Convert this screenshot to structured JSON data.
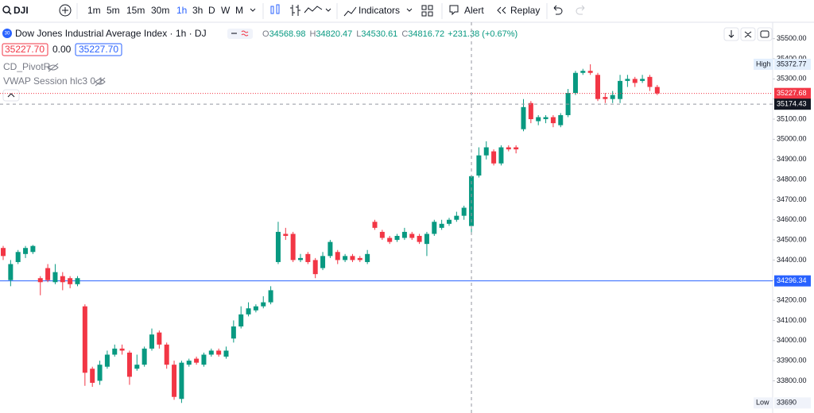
{
  "toolbar": {
    "symbol": "DJI",
    "intervals": [
      "1m",
      "5m",
      "15m",
      "30m",
      "1h",
      "3h",
      "D",
      "W",
      "M"
    ],
    "indicators": "Indicators",
    "alert": "Alert",
    "replay": "Replay"
  },
  "header": {
    "icon_text": "30",
    "title": "Dow Jones Industrial Average Index · 1h · DJ",
    "o_label": "O",
    "h_label": "H",
    "l_label": "L",
    "c_label": "C",
    "change": "+231.38 (+0.67%)",
    "bid": "35227.70",
    "spread": "0.00",
    "ask": "35227.70",
    "indicator_1": "CD_PivotR",
    "indicator_2": "VWAP Session hlc3 0 1",
    "high_label": "High",
    "low_label": "Low"
  },
  "chart_data": {
    "type": "candlestick",
    "hover_index": 63,
    "up_color": "#089981",
    "down_color": "#f23645",
    "open": [
      34460,
      34300,
      34390,
      34430,
      34440,
      34310,
      34360,
      34290,
      34320,
      34310,
      34280,
      34170,
      33860,
      33800,
      33870,
      33930,
      33960,
      33940,
      33860,
      33880,
      33960,
      34040,
      33980,
      33880,
      33710,
      33880,
      33910,
      33880,
      33930,
      33950,
      33920,
      34010,
      34070,
      34130,
      34150,
      34170,
      34190,
      34390,
      34530,
      34530,
      34400,
      34430,
      34400,
      34360,
      34420,
      34440,
      34400,
      34420,
      34410,
      34390,
      34590,
      34540,
      34510,
      34500,
      34510,
      34530,
      34520,
      34480,
      34530,
      34560,
      34580,
      34600,
      34620,
      34568.98,
      34820,
      34920,
      34940,
      34880,
      34960,
      34960,
      35050,
      35180,
      35090,
      35100,
      35110,
      35070,
      35120,
      35230,
      35330,
      35340,
      35320,
      35210,
      35200,
      35200,
      35290,
      35300,
      35290,
      35310,
      35260
    ],
    "high": [
      34470,
      34400,
      34450,
      34470,
      34475,
      34320,
      34380,
      34380,
      34340,
      34320,
      34320,
      34180,
      33870,
      33900,
      33950,
      33980,
      33980,
      33950,
      33930,
      33970,
      34060,
      34050,
      33990,
      33900,
      33900,
      33910,
      33920,
      33940,
      33960,
      33960,
      33970,
      34100,
      34170,
      34190,
      34180,
      34220,
      34270,
      34590,
      34560,
      34540,
      34430,
      34440,
      34410,
      34440,
      34500,
      34450,
      34430,
      34430,
      34420,
      34450,
      34600,
      34550,
      34520,
      34530,
      34560,
      34540,
      34530,
      34540,
      34600,
      34600,
      34610,
      34640,
      34670,
      34820.47,
      34960,
      34990,
      34950,
      34970,
      34970,
      34970,
      35200,
      35190,
      35120,
      35120,
      35120,
      35130,
      35250,
      35340,
      35350,
      35372.77,
      35330,
      35230,
      35240,
      35320,
      35320,
      35310,
      35320,
      35320,
      35270
    ],
    "low": [
      34400,
      34270,
      34380,
      34410,
      34430,
      34225,
      34290,
      34280,
      34250,
      34260,
      34270,
      33775,
      33770,
      33780,
      33860,
      33920,
      33930,
      33780,
      33850,
      33870,
      33950,
      33960,
      33860,
      33705.68,
      33690,
      33870,
      33880,
      33870,
      33920,
      33920,
      33910,
      33990,
      34060,
      34120,
      34140,
      34160,
      34180,
      34380,
      34500,
      34390,
      34390,
      34380,
      34310,
      34350,
      34410,
      34380,
      34390,
      34390,
      34390,
      34380,
      34550,
      34500,
      34480,
      34490,
      34500,
      34500,
      34480,
      34420,
      34520,
      34550,
      34570,
      34590,
      34600,
      34530.61,
      34810,
      34900,
      34870,
      34870,
      34940,
      34930,
      35040,
      35080,
      35070,
      35080,
      35060,
      35060,
      35110,
      35220,
      35320,
      35320,
      35190,
      35180,
      35180,
      35180,
      35260,
      35260,
      35280,
      35240,
      35220
    ],
    "close": [
      34420,
      34380,
      34440,
      34460,
      34470,
      34290,
      34300,
      34340,
      34290,
      34280,
      34310,
      33840,
      33790,
      33880,
      33930,
      33960,
      33950,
      33820,
      33880,
      33960,
      34030,
      33980,
      33880,
      33720,
      33890,
      33900,
      33890,
      33930,
      33950,
      33930,
      33950,
      34070,
      34130,
      34160,
      34170,
      34190,
      34250,
      34540,
      34520,
      34400,
      34410,
      34390,
      34330,
      34420,
      34490,
      34400,
      34420,
      34400,
      34400,
      34430,
      34560,
      34510,
      34490,
      34520,
      34540,
      34510,
      34490,
      34530,
      34590,
      34580,
      34600,
      34620,
      34660,
      34816.72,
      34920,
      34960,
      34880,
      34960,
      34950,
      34950,
      35160,
      35100,
      35110,
      35110,
      35080,
      35120,
      35230,
      35330,
      35340,
      35330,
      35200,
      35200,
      35220,
      35290,
      35300,
      35280,
      35300,
      35260,
      35227.68
    ],
    "ylim": [
      33640,
      35550
    ],
    "yticks": [
      {
        "value": 33800,
        "label": "33800.00"
      },
      {
        "value": 33900,
        "label": "33900.00"
      },
      {
        "value": 34000,
        "label": "34000.00"
      },
      {
        "value": 34100,
        "label": "34100.00"
      },
      {
        "value": 34200,
        "label": "34200.00"
      },
      {
        "value": 34300,
        "label": "34300.00"
      },
      {
        "value": 34400,
        "label": "34400.00"
      },
      {
        "value": 34500,
        "label": "34500.00"
      },
      {
        "value": 34600,
        "label": "34600.00"
      },
      {
        "value": 34700,
        "label": "34700.00"
      },
      {
        "value": 34800,
        "label": "34800.00"
      },
      {
        "value": 34900,
        "label": "34900.00"
      },
      {
        "value": 35000,
        "label": "35000.00"
      },
      {
        "value": 35100,
        "label": "35100.00"
      },
      {
        "value": 35200,
        "label": "35200.00"
      },
      {
        "value": 35300,
        "label": "35300.00"
      },
      {
        "value": 35400,
        "label": "35400.00"
      },
      {
        "value": 35500,
        "label": "35500.00"
      }
    ],
    "horizontal_line": 34296.34,
    "crosshair_price": 35174.43
  }
}
